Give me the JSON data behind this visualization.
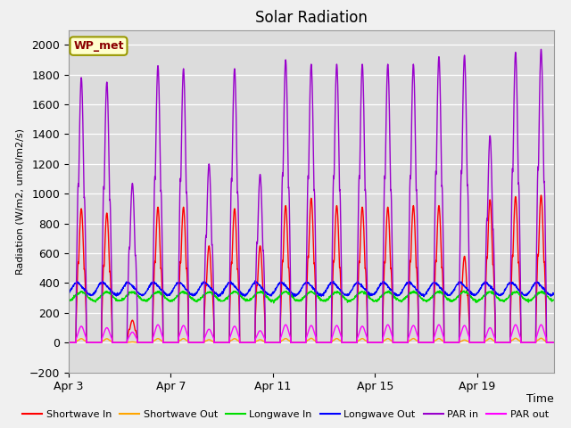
{
  "title": "Solar Radiation",
  "ylabel": "Radiation (W/m2, umol/m2/s)",
  "xlabel": "Time",
  "ylim": [
    -200,
    2100
  ],
  "yticks": [
    -200,
    0,
    200,
    400,
    600,
    800,
    1000,
    1200,
    1400,
    1600,
    1800,
    2000
  ],
  "legend_label": "WP_met",
  "series": [
    {
      "label": "Shortwave In",
      "color": "#ff0000",
      "lw": 1.0
    },
    {
      "label": "Shortwave Out",
      "color": "#ffa500",
      "lw": 1.0
    },
    {
      "label": "Longwave In",
      "color": "#00dd00",
      "lw": 1.0
    },
    {
      "label": "Longwave Out",
      "color": "#0000ff",
      "lw": 1.0
    },
    {
      "label": "PAR in",
      "color": "#9900cc",
      "lw": 1.0
    },
    {
      "label": "PAR out",
      "color": "#ff00ff",
      "lw": 1.0
    }
  ],
  "xtick_labels": [
    "Apr 3",
    "Apr 7",
    "Apr 11",
    "Apr 15",
    "Apr 19"
  ],
  "xtick_positions": [
    0,
    4,
    8,
    12,
    16
  ],
  "n_days": 19,
  "dt": 0.01,
  "sw_peaks_red": [
    900,
    870,
    150,
    910,
    910,
    650,
    900,
    650,
    920,
    970,
    920,
    910,
    910,
    920,
    920,
    580,
    960,
    980,
    990
  ],
  "sw_peaks_purple": [
    1780,
    1750,
    1070,
    1860,
    1840,
    1200,
    1840,
    1130,
    1900,
    1870,
    1870,
    1870,
    1870,
    1870,
    1920,
    1930,
    1390,
    1950,
    1970
  ],
  "par_out_peaks": [
    110,
    100,
    70,
    120,
    115,
    90,
    110,
    80,
    120,
    115,
    115,
    110,
    120,
    115,
    120,
    115,
    100,
    120,
    120
  ]
}
